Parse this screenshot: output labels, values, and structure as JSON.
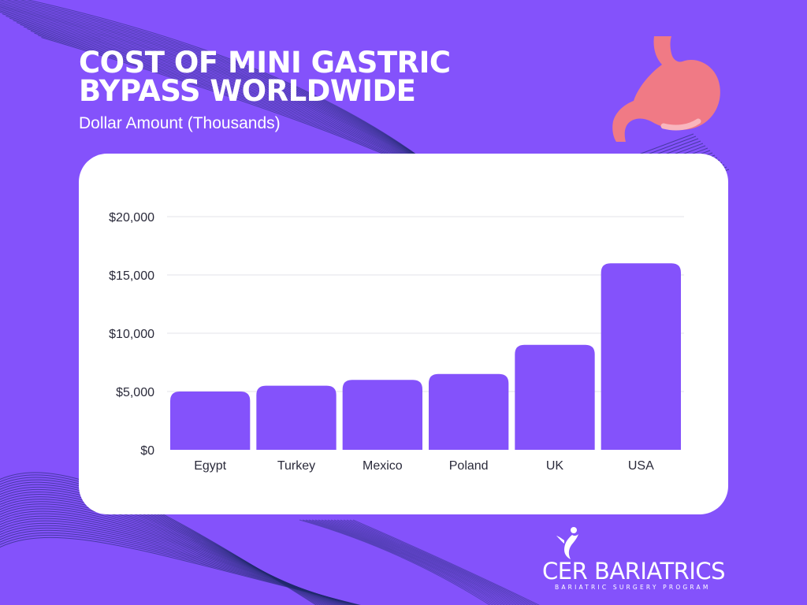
{
  "header": {
    "title_line1": "COST OF MINI GASTRIC",
    "title_line2": "BYPASS WORLDWIDE",
    "subtitle": "Dollar Amount (Thousands)"
  },
  "colors": {
    "background": "#8452fb",
    "bar": "#8452fb",
    "card": "#ffffff",
    "axis_text": "#2a2a3a",
    "gridline": "#e3e3e8",
    "stomach": "#f07a85",
    "stomach_highlight": "#f9b6bd",
    "decor_lines": "#1f2a6b"
  },
  "icons": {
    "stomach": "stomach-icon",
    "logo_figure": "person-figure-icon"
  },
  "logo": {
    "name": "CER BARIATRICS",
    "tagline": "BARIATRIC SURGERY PROGRAM"
  },
  "chart_data": {
    "type": "bar",
    "categories": [
      "Egypt",
      "Turkey",
      "Mexico",
      "Poland",
      "UK",
      "USA"
    ],
    "values": [
      5000,
      5500,
      6000,
      6500,
      9000,
      16000
    ],
    "ylim": [
      0,
      20000
    ],
    "yticks": [
      0,
      5000,
      10000,
      15000,
      20000
    ],
    "ytick_labels": [
      "$0",
      "$5,000",
      "$10,000",
      "$15,000",
      "$20,000"
    ],
    "title": "COST OF MINI GASTRIC BYPASS WORLDWIDE",
    "subtitle": "Dollar Amount (Thousands)",
    "xlabel": "",
    "ylabel": "",
    "grid": true,
    "legend": "none"
  }
}
